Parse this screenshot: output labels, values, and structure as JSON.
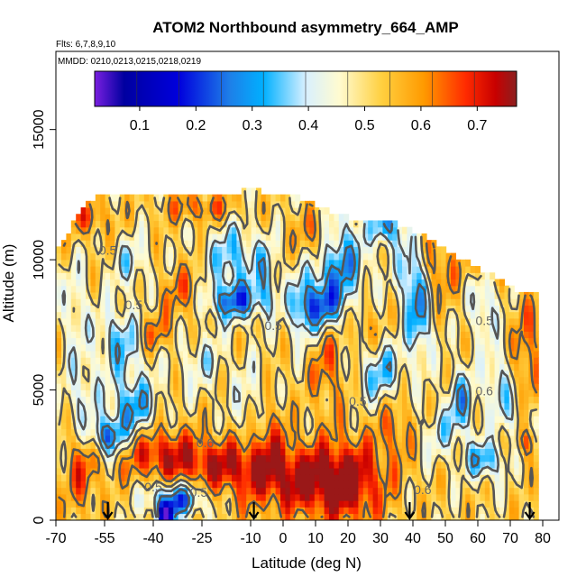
{
  "chart_data": {
    "type": "heatmap",
    "title": "ATOM2 Northbound asymmetry_664_AMP",
    "subtitle_flights": "Flts: 6,7,8,9,10",
    "subtitle_dates": "MMDD: 0210,0213,0215,0218,0219",
    "xlabel": "Latitude (deg N)",
    "ylabel": "Altitude (m)",
    "xlim": [
      -70,
      85
    ],
    "ylim": [
      0,
      18000
    ],
    "x_ticks": [
      "-70",
      "-55",
      "-40",
      "-25",
      "-10",
      "0",
      "10",
      "20",
      "30",
      "40",
      "50",
      "60",
      "70",
      "80"
    ],
    "x_tick_values": [
      -70,
      -55,
      -40,
      -25,
      -10,
      0,
      10,
      20,
      30,
      40,
      50,
      60,
      70,
      80
    ],
    "y_ticks": [
      "0",
      "5000",
      "10000",
      "15000"
    ],
    "y_tick_values": [
      0,
      5000,
      10000,
      15000
    ],
    "colorbar": {
      "range": [
        0.02,
        0.77
      ],
      "tick_labels": [
        "0.1",
        "0.2",
        "0.3",
        "0.4",
        "0.5",
        "0.6",
        "0.7"
      ],
      "tick_values": [
        0.1,
        0.2,
        0.3,
        0.4,
        0.5,
        0.6,
        0.7
      ],
      "colors": [
        "#7a1fe0",
        "#00007a",
        "#0000cc",
        "#1e6fe8",
        "#00aaff",
        "#bfe6ff",
        "#fffde0",
        "#ffe066",
        "#ffb000",
        "#ff5500",
        "#e60000",
        "#8b1a1a"
      ]
    },
    "contour_levels": [
      0.3,
      0.4,
      0.5,
      0.6
    ],
    "contour_labels": [
      {
        "text": "0.5",
        "x": -54,
        "y": 10200
      },
      {
        "text": "0.5",
        "x": -46,
        "y": 8100
      },
      {
        "text": "0.5",
        "x": -3,
        "y": 7300
      },
      {
        "text": "0.5",
        "x": 23,
        "y": 4400
      },
      {
        "text": "0.5",
        "x": 62,
        "y": 7500
      },
      {
        "text": "0.6",
        "x": 62,
        "y": 4800
      },
      {
        "text": "0.6",
        "x": -24,
        "y": 2800
      },
      {
        "text": "0.6",
        "x": 43,
        "y": 1000
      },
      {
        "text": "0.5",
        "x": -40,
        "y": 1100
      },
      {
        "text": "0.5",
        "x": -26,
        "y": 900
      }
    ],
    "flight_markers_lat": [
      -54,
      -9,
      39,
      76
    ],
    "max_altitude_by_lat": [
      {
        "lat": -69,
        "alt": 10400
      },
      {
        "lat": -64,
        "alt": 11600
      },
      {
        "lat": -58,
        "alt": 12400
      },
      {
        "lat": -40,
        "alt": 12400
      },
      {
        "lat": -20,
        "alt": 12400
      },
      {
        "lat": -10,
        "alt": 12700
      },
      {
        "lat": 5,
        "alt": 12400
      },
      {
        "lat": 20,
        "alt": 11600
      },
      {
        "lat": 35,
        "alt": 11400
      },
      {
        "lat": 45,
        "alt": 10800
      },
      {
        "lat": 55,
        "alt": 10000
      },
      {
        "lat": 65,
        "alt": 9400
      },
      {
        "lat": 72,
        "alt": 8800
      },
      {
        "lat": 79,
        "alt": 8800
      }
    ]
  }
}
